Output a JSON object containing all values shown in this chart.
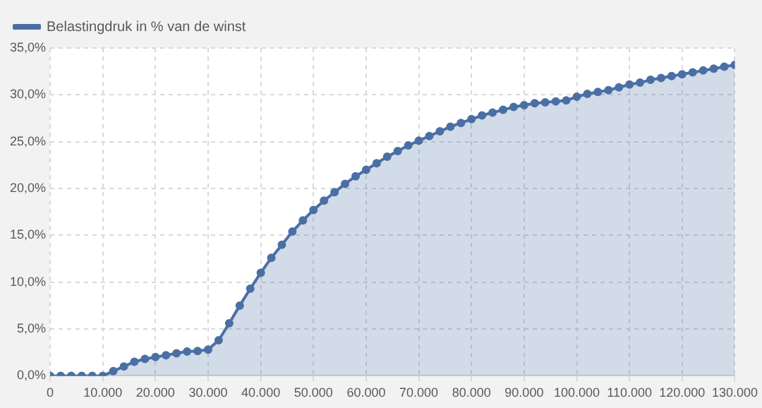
{
  "chart_data": {
    "type": "area",
    "x": [
      0,
      2000,
      4000,
      6000,
      8000,
      10000,
      12000,
      14000,
      16000,
      18000,
      20000,
      22000,
      24000,
      26000,
      28000,
      30000,
      32000,
      34000,
      36000,
      38000,
      40000,
      42000,
      44000,
      46000,
      48000,
      50000,
      52000,
      54000,
      56000,
      58000,
      60000,
      62000,
      64000,
      66000,
      68000,
      70000,
      72000,
      74000,
      76000,
      78000,
      80000,
      82000,
      84000,
      86000,
      88000,
      90000,
      92000,
      94000,
      96000,
      98000,
      100000,
      102000,
      104000,
      106000,
      108000,
      110000,
      112000,
      114000,
      116000,
      118000,
      120000,
      122000,
      124000,
      126000,
      128000,
      130000
    ],
    "series": [
      {
        "name": "Belastingdruk in % van de winst",
        "color": "#4a6fa5",
        "values": [
          0,
          0,
          0,
          0,
          0,
          0,
          0.5,
          1.0,
          1.5,
          1.8,
          2.0,
          2.2,
          2.4,
          2.6,
          2.65,
          2.8,
          3.8,
          5.6,
          7.5,
          9.3,
          11.0,
          12.6,
          14.0,
          15.4,
          16.6,
          17.7,
          18.7,
          19.6,
          20.5,
          21.3,
          22.0,
          22.7,
          23.4,
          24.0,
          24.6,
          25.1,
          25.6,
          26.1,
          26.6,
          27.0,
          27.4,
          27.8,
          28.1,
          28.4,
          28.7,
          28.9,
          29.1,
          29.2,
          29.3,
          29.4,
          29.8,
          30.1,
          30.3,
          30.5,
          30.8,
          31.1,
          31.3,
          31.6,
          31.8,
          32.0,
          32.2,
          32.4,
          32.6,
          32.8,
          33.0,
          33.2
        ]
      }
    ],
    "xlim": [
      0,
      130000
    ],
    "xticks": [
      {
        "value": 0,
        "label": "0"
      },
      {
        "value": 10000,
        "label": "10.000"
      },
      {
        "value": 20000,
        "label": "20.000"
      },
      {
        "value": 30000,
        "label": "30.000"
      },
      {
        "value": 40000,
        "label": "40.000"
      },
      {
        "value": 50000,
        "label": "50.000"
      },
      {
        "value": 60000,
        "label": "60.000"
      },
      {
        "value": 70000,
        "label": "70.000"
      },
      {
        "value": 80000,
        "label": "80.000"
      },
      {
        "value": 90000,
        "label": "90.000"
      },
      {
        "value": 100000,
        "label": "100.000"
      },
      {
        "value": 110000,
        "label": "110.000"
      },
      {
        "value": 120000,
        "label": "120.000"
      },
      {
        "value": 130000,
        "label": "130.000"
      }
    ],
    "ylim": [
      0,
      35
    ],
    "yticks": [
      {
        "value": 0,
        "label": "0,0%"
      },
      {
        "value": 5,
        "label": "5,0%"
      },
      {
        "value": 10,
        "label": "10,0%"
      },
      {
        "value": 15,
        "label": "15,0%"
      },
      {
        "value": 20,
        "label": "20,0%"
      },
      {
        "value": 25,
        "label": "25,0%"
      },
      {
        "value": 30,
        "label": "30,0%"
      },
      {
        "value": 35,
        "label": "35,0%"
      }
    ],
    "grid": true,
    "legend": "top left",
    "marker": "circle"
  }
}
